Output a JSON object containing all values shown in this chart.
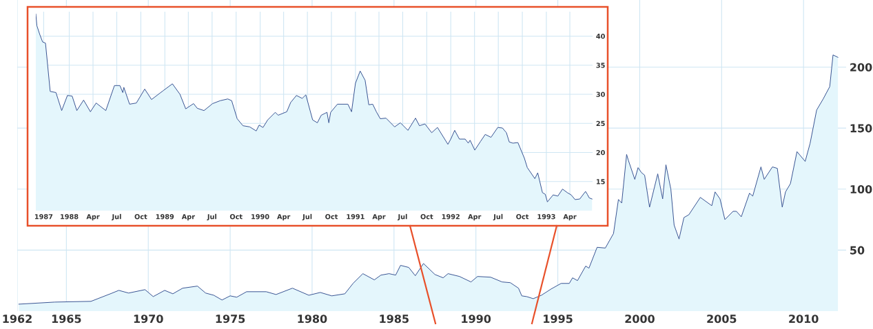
{
  "chart_data": [
    {
      "type": "area",
      "x": [
        1962.1,
        1964.3,
        1966.5,
        1967.8,
        1968.2,
        1968.8,
        1969.8,
        1970.3,
        1971.0,
        1971.5,
        1972.1,
        1973.0,
        1973.5,
        1974.0,
        1974.5,
        1975.0,
        1975.4,
        1976.0,
        1977.2,
        1977.8,
        1978.8,
        1979.8,
        1980.5,
        1981.2,
        1982.0,
        1982.5,
        1983.1,
        1983.8,
        1984.2,
        1984.7,
        1985.1,
        1985.4,
        1985.9,
        1986.3,
        1986.8,
        1987.5,
        1988.0,
        1988.3,
        1989.0,
        1989.7,
        1990.1,
        1990.9,
        1991.6,
        1992.1,
        1992.6,
        1992.8,
        1993.1,
        1993.5,
        1994.0,
        1994.6,
        1995.2,
        1995.7,
        1995.9,
        1996.2,
        1996.7,
        1996.9,
        1997.4,
        1997.9,
        1998.4,
        1998.7,
        1998.9,
        1999.2,
        1999.3,
        1999.7,
        1999.9,
        2000.1,
        2000.3,
        2000.6,
        2001.1,
        2001.4,
        2001.6,
        2001.9,
        2002.1,
        2002.4,
        2002.7,
        2003.0,
        2003.7,
        2004.4,
        2004.6,
        2004.9,
        2005.2,
        2005.7,
        2005.9,
        2006.2,
        2006.7,
        2006.9,
        2007.4,
        2007.6,
        2008.1,
        2008.4,
        2008.7,
        2008.9,
        2009.2,
        2009.6,
        2010.1,
        2010.4,
        2010.8,
        2011.2,
        2011.6,
        2011.8,
        2012.1
      ],
      "series": [
        {
          "color": "#34508f",
          "values": [
            5.7,
            7.4,
            8,
            14.8,
            17,
            14.8,
            17.6,
            11.9,
            17,
            14.2,
            18.8,
            20.5,
            14.8,
            13,
            9.1,
            12.5,
            11.4,
            15.9,
            15.9,
            13.6,
            18.8,
            13,
            15.3,
            12.5,
            14.2,
            22.7,
            30.7,
            25.6,
            29.5,
            30.7,
            29.5,
            37.5,
            35.8,
            29,
            39,
            30,
            27.3,
            30.7,
            28.4,
            23.9,
            28.4,
            27.8,
            23.9,
            23.3,
            18.8,
            12.5,
            11.9,
            10.2,
            13,
            18.2,
            22.7,
            22.7,
            27.3,
            25,
            36.9,
            35.2,
            52.3,
            51.7,
            63.6,
            91.5,
            88.6,
            128.4,
            123.9,
            108,
            117.6,
            113.6,
            111.4,
            85.2,
            112.5,
            92,
            119.9,
            100,
            70.5,
            59.1,
            76.7,
            79,
            93.2,
            86.4,
            97.7,
            92,
            75,
            81.8,
            81.8,
            77.3,
            96.6,
            94.3,
            118.2,
            108,
            118.2,
            117,
            85.2,
            97.7,
            104.5,
            130.7,
            122.7,
            137.5,
            164.8,
            173.9,
            184,
            210,
            208
          ]
        }
      ],
      "xlim": [
        1962,
        2012.6
      ],
      "xticks": [
        1962,
        1965,
        1970,
        1975,
        1980,
        1985,
        1990,
        1995,
        2000,
        2005,
        2010
      ],
      "ylim": [
        0,
        255
      ],
      "yticks": [
        50,
        100,
        150,
        200
      ],
      "grid": true
    },
    {
      "type": "area",
      "x": [
        "1987-08-26",
        "1987-08-30",
        "1987-09-10",
        "1987-09-21",
        "1987-10-02",
        "1987-10-20",
        "1987-11-11",
        "1987-12-03",
        "1987-12-25",
        "1988-01-12",
        "1988-01-30",
        "1988-02-25",
        "1988-03-22",
        "1988-04-13",
        "1988-05-20",
        "1988-06-22",
        "1988-07-13",
        "1988-07-24",
        "1988-07-28",
        "1988-08-19",
        "1988-09-14",
        "1988-10-16",
        "1988-11-11",
        "1988-12-25",
        "1989-01-30",
        "1989-02-28",
        "1989-03-22",
        "1989-04-21",
        "1989-05-05",
        "1989-05-31",
        "1989-07-03",
        "1989-08-01",
        "1989-08-30",
        "1989-09-14",
        "1989-10-05",
        "1989-10-27",
        "1989-11-22",
        "1989-12-17",
        "1989-12-28",
        "1990-01-12",
        "1990-01-30",
        "1990-02-28",
        "1990-03-11",
        "1990-04-13",
        "1990-04-28",
        "1990-05-20",
        "1990-06-11",
        "1990-06-25",
        "1990-07-21",
        "1990-08-08",
        "1990-08-23",
        "1990-09-14",
        "1990-09-21",
        "1990-09-28",
        "1990-10-24",
        "1990-12-03",
        "1990-12-17",
        "1991-01-01",
        "1991-01-19",
        "1991-02-07",
        "1991-02-21",
        "1991-03-08",
        "1991-03-22",
        "1991-04-06",
        "1991-04-28",
        "1991-05-31",
        "1991-06-22",
        "1991-07-21",
        "1991-08-19",
        "1991-09-03",
        "1991-09-24",
        "1991-10-20",
        "1991-11-11",
        "1991-12-21",
        "1992-01-01",
        "1992-01-16",
        "1992-02-03",
        "1992-02-25",
        "1992-03-08",
        "1992-03-15",
        "1992-04-02",
        "1992-04-24",
        "1992-05-12",
        "1992-06-03",
        "1992-06-29",
        "1992-07-17",
        "1992-08-01",
        "1992-08-12",
        "1992-08-26",
        "1992-09-14",
        "1992-10-09",
        "1992-10-20",
        "1992-11-18",
        "1992-11-29",
        "1992-12-17",
        "1992-12-28",
        "1993-01-05",
        "1993-01-27",
        "1993-02-14",
        "1993-03-04",
        "1993-03-22",
        "1993-04-06",
        "1993-04-21",
        "1993-05-09",
        "1993-05-31",
        "1993-06-07",
        "1993-06-14",
        "1993-06-25"
      ],
      "series": [
        {
          "color": "#34508f",
          "values": [
            43.8,
            41.8,
            40.3,
            39,
            38.8,
            30.5,
            30.3,
            27.2,
            29.8,
            29.7,
            27.2,
            29,
            27,
            28.5,
            27.2,
            31.5,
            31.5,
            30.3,
            31.2,
            28.3,
            28.5,
            30.9,
            29.1,
            30.6,
            31.8,
            30,
            27.5,
            28.4,
            27.6,
            27.2,
            28.4,
            28.9,
            29.2,
            28.9,
            25.8,
            24.6,
            24.4,
            23.7,
            24.7,
            24.3,
            25.6,
            26.9,
            26.4,
            27,
            28.6,
            29.8,
            29.3,
            29.9,
            25.6,
            25.1,
            26.4,
            26.9,
            25.1,
            26.9,
            28.3,
            28.3,
            27,
            31.9,
            34,
            32.4,
            28.2,
            28.3,
            27,
            25.8,
            25.9,
            24.4,
            25.1,
            23.8,
            25.9,
            24.6,
            24.9,
            23.4,
            24.3,
            21.4,
            22.3,
            23.8,
            22.3,
            22.3,
            21.6,
            22.1,
            20.4,
            21.9,
            23.1,
            22.6,
            24.3,
            24.2,
            23.4,
            21.8,
            21.6,
            21.7,
            19,
            17.4,
            15.5,
            16.5,
            13.1,
            12.8,
            11.5,
            12.7,
            12.5,
            13.7,
            13.1,
            12.7,
            11.9,
            12,
            13.3,
            12.8,
            12.2,
            12
          ]
        }
      ],
      "xlim": [
        "1987-08-26",
        "1993-06-27"
      ],
      "xticks": [
        {
          "value": "1987-09-25",
          "label": "1987"
        },
        {
          "value": "1988-01-01",
          "label": "1988"
        },
        {
          "value": "1988-04-01",
          "label": "Apr"
        },
        {
          "value": "1988-07-01",
          "label": "Jul"
        },
        {
          "value": "1988-10-01",
          "label": "Oct"
        },
        {
          "value": "1989-01-01",
          "label": "1989"
        },
        {
          "value": "1989-04-01",
          "label": "Apr"
        },
        {
          "value": "1989-07-01",
          "label": "Jul"
        },
        {
          "value": "1989-10-01",
          "label": "Oct"
        },
        {
          "value": "1990-01-01",
          "label": "1990"
        },
        {
          "value": "1990-04-01",
          "label": "Apr"
        },
        {
          "value": "1990-07-01",
          "label": "Jul"
        },
        {
          "value": "1990-10-01",
          "label": "Oct"
        },
        {
          "value": "1991-01-01",
          "label": "1991"
        },
        {
          "value": "1991-04-01",
          "label": "Apr"
        },
        {
          "value": "1991-07-01",
          "label": "Jul"
        },
        {
          "value": "1991-10-01",
          "label": "Oct"
        },
        {
          "value": "1992-01-01",
          "label": "1992"
        },
        {
          "value": "1992-04-01",
          "label": "Apr"
        },
        {
          "value": "1992-07-01",
          "label": "Jul"
        },
        {
          "value": "1992-10-01",
          "label": "Oct"
        },
        {
          "value": "1993-01-01",
          "label": "1993"
        },
        {
          "value": "1993-04-01",
          "label": "Apr"
        }
      ],
      "ylim": [
        10,
        44.2
      ],
      "yticks": [
        15,
        20,
        25,
        30,
        35,
        40
      ],
      "grid": true
    }
  ]
}
